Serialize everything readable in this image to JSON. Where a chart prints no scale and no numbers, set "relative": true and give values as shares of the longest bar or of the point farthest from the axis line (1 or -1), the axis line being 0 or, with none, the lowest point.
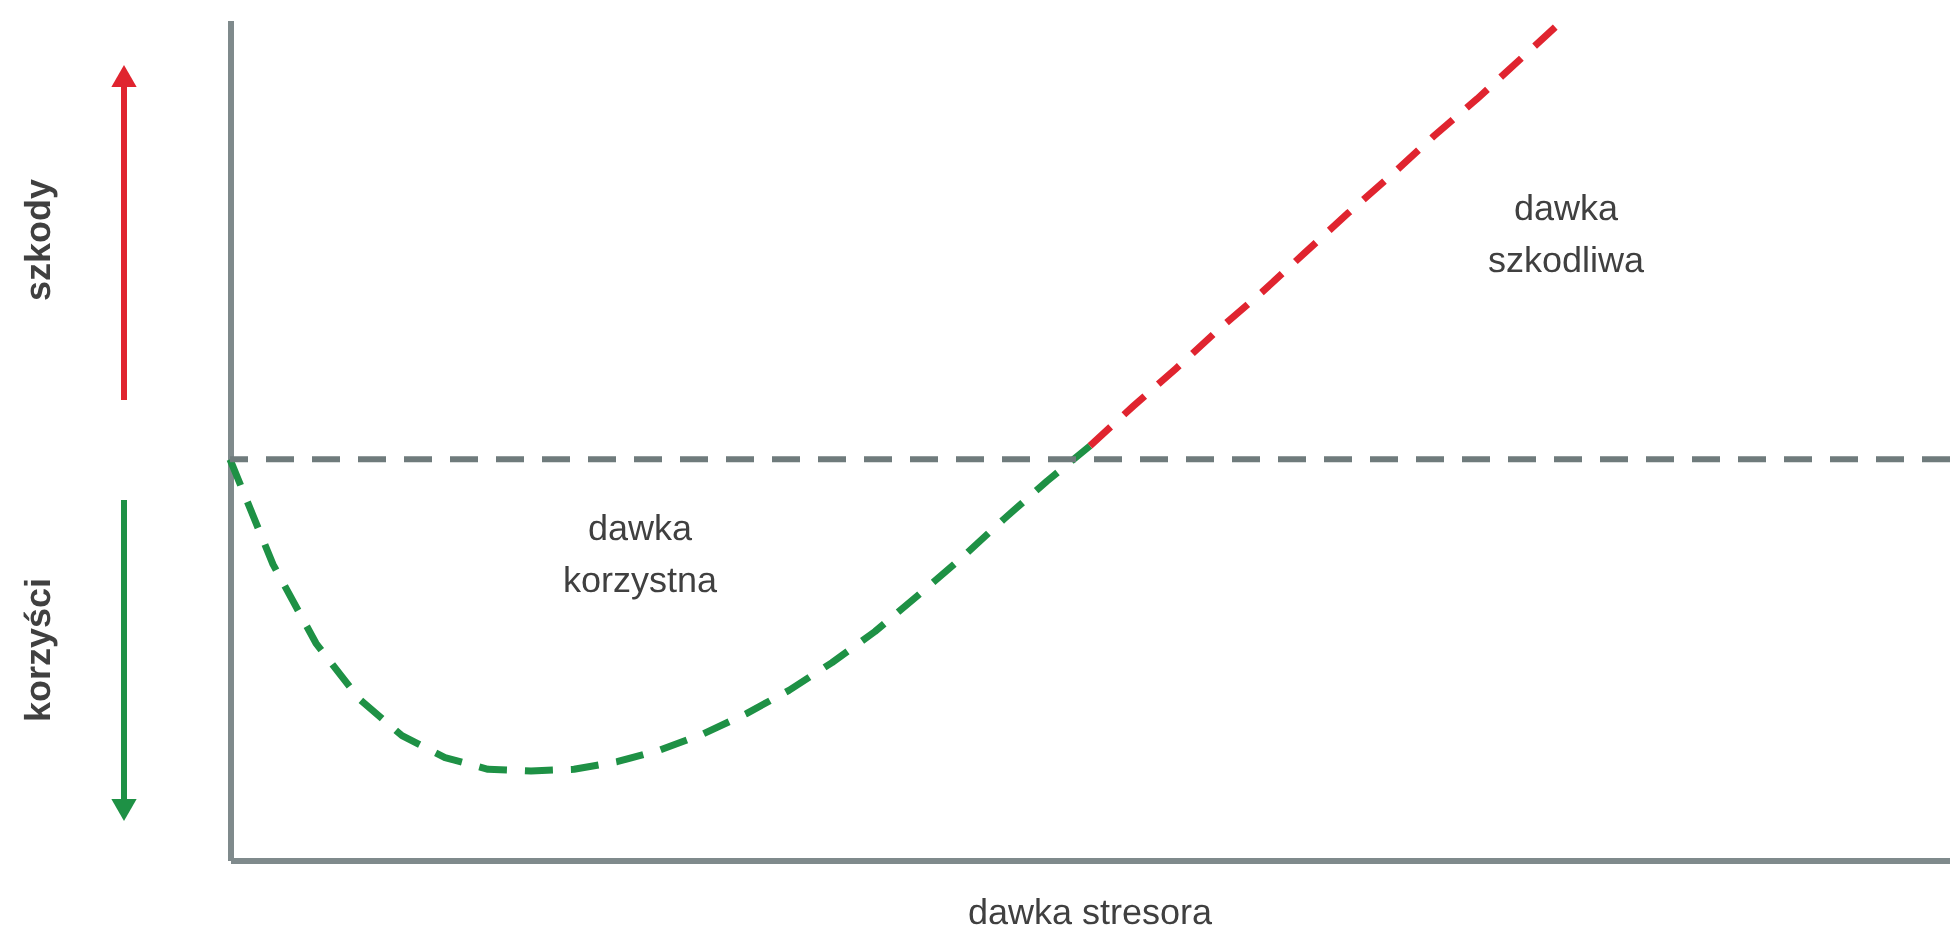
{
  "chart_data": {
    "type": "line",
    "relative": true,
    "xlabel": "dawka stresora",
    "categories": [
      null,
      null,
      null,
      null,
      null,
      null,
      null,
      null,
      null,
      null,
      null,
      null,
      null,
      null,
      null,
      null,
      null,
      null,
      null,
      null,
      null,
      null,
      null,
      null,
      null,
      null,
      null,
      null,
      null,
      null,
      null,
      null,
      null,
      null,
      null,
      null,
      null,
      null,
      null,
      null,
      null
    ],
    "series": [
      {
        "color": "#1e9145",
        "values": [
          0.477,
          0.352,
          0.258,
          0.192,
          0.148,
          0.122,
          0.108,
          0.106,
          0.108,
          0.117,
          0.131,
          0.15,
          0.174,
          0.202,
          0.235,
          0.272,
          0.315,
          0.359,
          0.406,
          0.451,
          0.493,
          null,
          null,
          null,
          null,
          null,
          null,
          null,
          null,
          null,
          null,
          null,
          null,
          null,
          null,
          null,
          null,
          null,
          null,
          null,
          null
        ]
      },
      {
        "color": "#e0242f",
        "values": [
          null,
          null,
          null,
          null,
          null,
          null,
          null,
          null,
          null,
          null,
          null,
          null,
          null,
          null,
          null,
          null,
          null,
          null,
          null,
          null,
          0.493,
          0.54,
          0.585,
          0.632,
          0.676,
          0.723,
          0.77,
          0.815,
          0.862,
          0.906,
          0.953,
          1.0,
          null,
          null,
          null,
          null,
          null,
          null,
          null,
          null,
          null
        ]
      }
    ],
    "ref_lines": [
      {
        "axis": "y",
        "value": 0.477,
        "color": "#6f7b7c",
        "line_style": "dashed"
      }
    ],
    "annotations": [
      "dawka\nkorzystna",
      "dawka\nszkodliwa",
      "szkody",
      "korzyści"
    ],
    "line_style": "dashed",
    "marker": "none",
    "grid": false,
    "tick_labels": false
  }
}
